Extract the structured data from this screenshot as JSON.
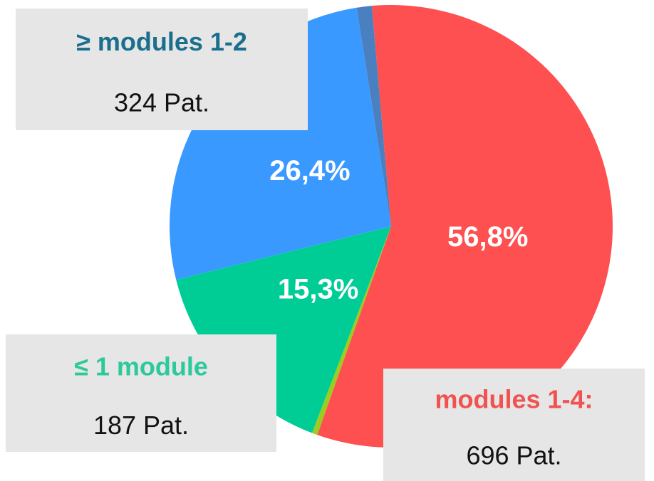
{
  "chart_data": {
    "type": "pie",
    "categories": [
      "modules 1-4:",
      null,
      "≤ 1 module",
      "≥ modules 1-2",
      null
    ],
    "values": [
      56.8,
      0.4,
      15.3,
      26.4,
      1.1
    ],
    "value_labels": [
      "56,8%",
      null,
      "15,3%",
      "26,4%",
      null
    ],
    "patient_labels": [
      "696 Pat.",
      null,
      "187 Pat.",
      "324 Pat.",
      null
    ],
    "colors": [
      "#fe5050",
      "#9acd1e",
      "#00cc96",
      "#3a99fe",
      "#4a80c0"
    ],
    "label_colors": [
      "#f05252",
      null,
      "#2cc99a",
      "#1a6e8e",
      null
    ]
  }
}
